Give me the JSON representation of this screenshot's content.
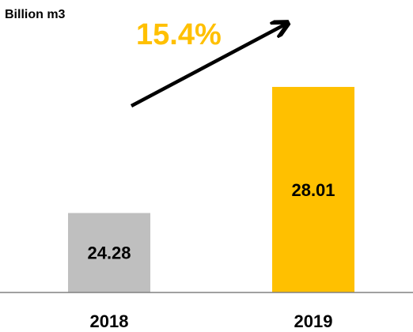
{
  "chart_data": {
    "type": "bar",
    "y_label": "Billion m3",
    "annotation": "15.4%",
    "categories": [
      "2018",
      "2019"
    ],
    "values": [
      24.28,
      28.01
    ],
    "colors": [
      "#bfbfbf",
      "#ffc000"
    ],
    "annotation_color": "#ffc000",
    "ylim": [
      21.93,
      28.5
    ]
  }
}
